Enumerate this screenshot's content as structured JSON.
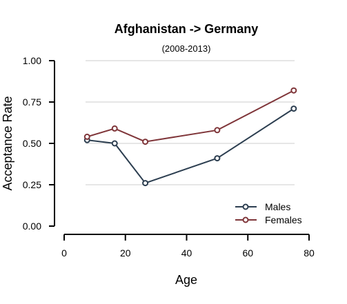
{
  "chart_data": {
    "type": "line",
    "title": "Afghanistan  ->  Germany",
    "subtitle": "(2008-2013)",
    "xlabel": "Age",
    "ylabel": "Acceptance Rate",
    "xlim": [
      0,
      80
    ],
    "ylim": [
      0,
      1
    ],
    "xticks": [
      0,
      20,
      40,
      60,
      80
    ],
    "yticks": [
      0,
      0.25,
      0.5,
      0.75,
      1
    ],
    "xtick_labels": [
      "0",
      "20",
      "40",
      "60",
      "80"
    ],
    "ytick_labels": [
      "0.00",
      "0.25",
      "0.50",
      "0.75",
      "1.00"
    ],
    "grid": "horizontal",
    "legend": "bottom-right",
    "x": [
      7.5,
      16.5,
      26.5,
      50,
      75
    ],
    "series": [
      {
        "name": "Males",
        "color": "#2c3e50",
        "values": [
          0.52,
          0.5,
          0.26,
          0.41,
          0.71
        ]
      },
      {
        "name": "Females",
        "color": "#7f3539",
        "values": [
          0.54,
          0.59,
          0.51,
          0.58,
          0.82
        ]
      }
    ]
  }
}
